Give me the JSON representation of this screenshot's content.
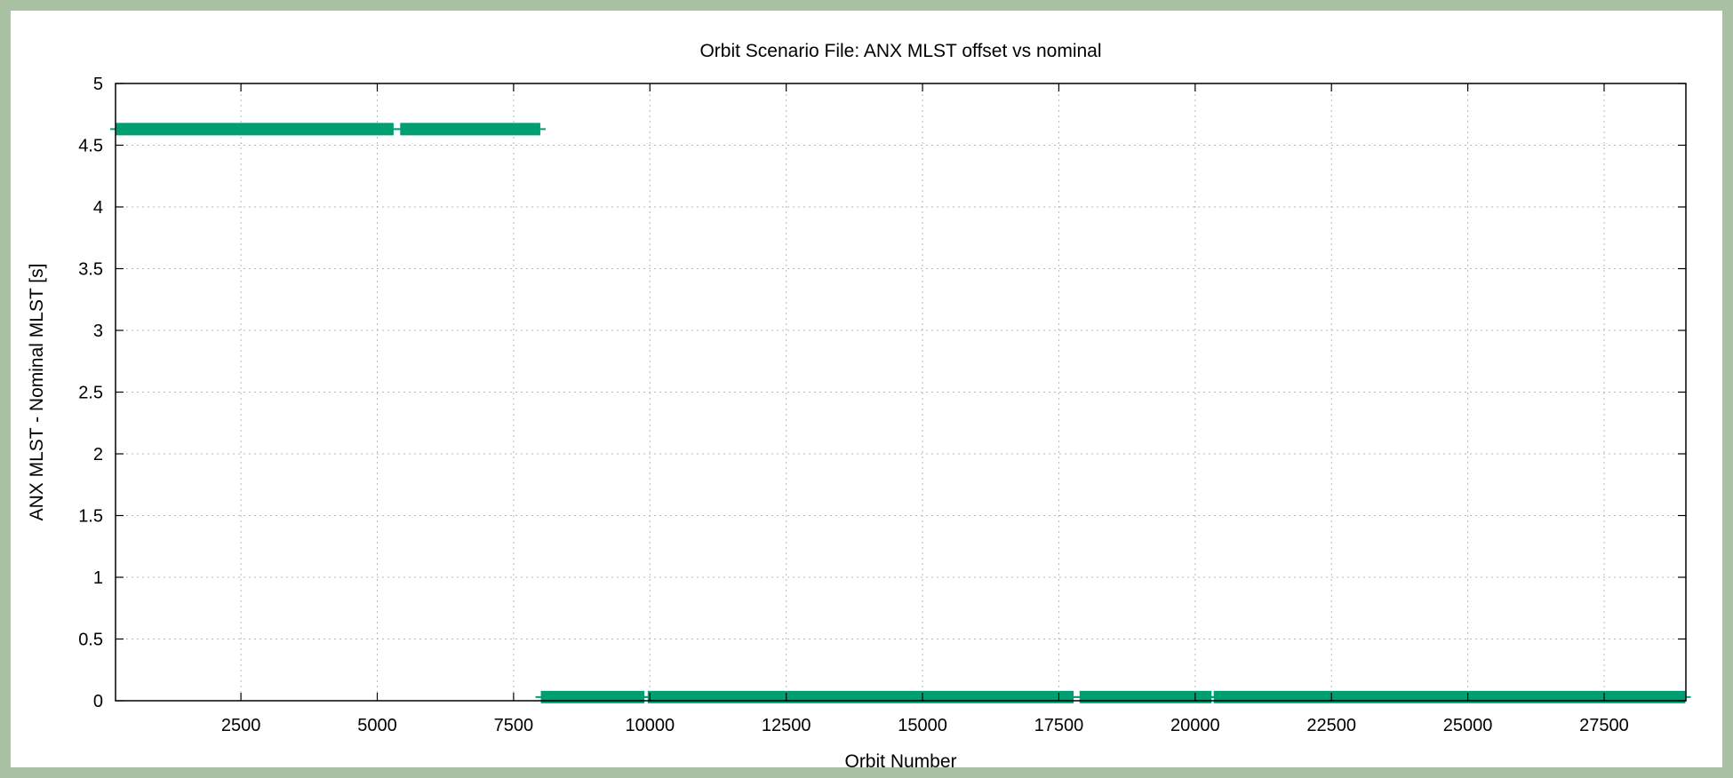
{
  "chart_data": {
    "type": "line",
    "title": "Orbit Scenario File: ANX MLST offset vs nominal",
    "xlabel": "Orbit Number",
    "ylabel": "ANX MLST - Nominal MLST [s]",
    "xlim": [
      200,
      29000
    ],
    "ylim": [
      0,
      5
    ],
    "xticks": [
      2500,
      5000,
      7500,
      10000,
      12500,
      15000,
      17500,
      20000,
      22500,
      25000,
      27500
    ],
    "yticks": [
      0,
      0.5,
      1,
      1.5,
      2,
      2.5,
      3,
      3.5,
      4,
      4.5,
      5
    ],
    "ytick_labels": [
      "0",
      "0.5",
      "1",
      "1.5",
      "2",
      "2.5",
      "3",
      "3.5",
      "4",
      "4.5",
      "5"
    ],
    "grid": true,
    "legend": false,
    "color": "#009e73",
    "series": [
      {
        "segments": [
          {
            "x": [
              200,
              5300
            ],
            "y": [
              4.63,
              4.63
            ]
          },
          {
            "x": [
              5420,
              7990
            ],
            "y": [
              4.63,
              4.63
            ]
          },
          {
            "x": [
              8000,
              9900
            ],
            "y": [
              0.03,
              0.03
            ]
          },
          {
            "x": [
              9960,
              17770
            ],
            "y": [
              0.03,
              0.03
            ]
          },
          {
            "x": [
              17880,
              20300
            ],
            "y": [
              0.03,
              0.03
            ]
          },
          {
            "x": [
              20340,
              28990
            ],
            "y": [
              0.03,
              0.03
            ]
          }
        ]
      }
    ]
  }
}
